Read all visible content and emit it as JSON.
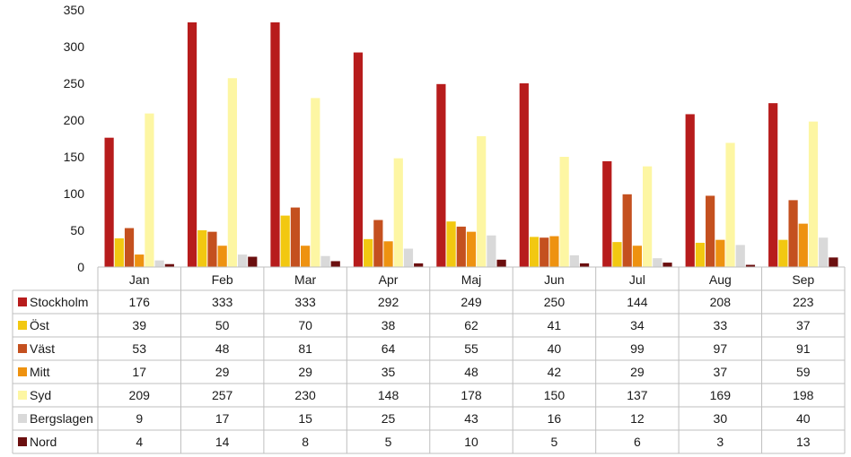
{
  "chart_data": {
    "type": "bar",
    "categories": [
      "Jan",
      "Feb",
      "Mar",
      "Apr",
      "Maj",
      "Jun",
      "Jul",
      "Aug",
      "Sep"
    ],
    "ylim": [
      0,
      350
    ],
    "yticks": [
      0,
      50,
      100,
      150,
      200,
      250,
      300,
      350
    ],
    "grid": false,
    "legend": "data table below plot",
    "series": [
      {
        "name": "Stockholm",
        "color": "#B71C1C",
        "values": [
          176,
          333,
          333,
          292,
          249,
          250,
          144,
          208,
          223
        ]
      },
      {
        "name": "Öst",
        "color": "#F2C811",
        "values": [
          39,
          50,
          70,
          38,
          62,
          41,
          34,
          33,
          37
        ]
      },
      {
        "name": "Väst",
        "color": "#C4501F",
        "values": [
          53,
          48,
          81,
          64,
          55,
          40,
          99,
          97,
          91
        ]
      },
      {
        "name": "Mitt",
        "color": "#EE9210",
        "values": [
          17,
          29,
          29,
          35,
          48,
          42,
          29,
          37,
          59
        ]
      },
      {
        "name": "Syd",
        "color": "#FDF6A3",
        "values": [
          209,
          257,
          230,
          148,
          178,
          150,
          137,
          169,
          198
        ]
      },
      {
        "name": "Bergslagen",
        "color": "#D9D9D9",
        "values": [
          9,
          17,
          15,
          25,
          43,
          16,
          12,
          30,
          40
        ]
      },
      {
        "name": "Nord",
        "color": "#6B0F0F",
        "values": [
          4,
          14,
          8,
          5,
          10,
          5,
          6,
          3,
          13
        ]
      }
    ]
  }
}
